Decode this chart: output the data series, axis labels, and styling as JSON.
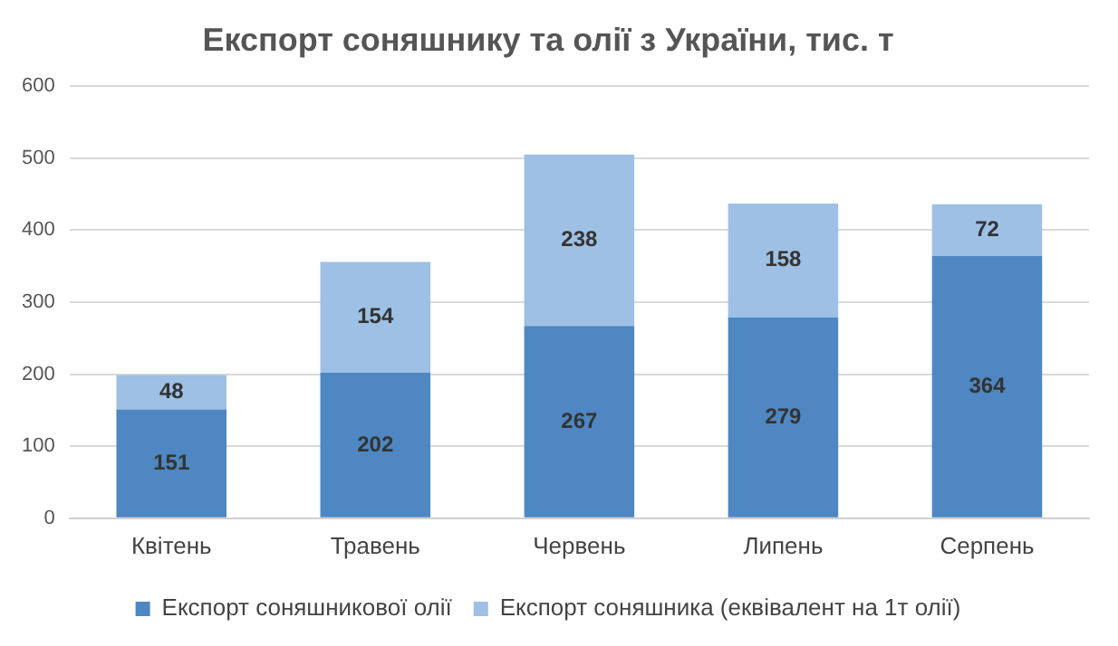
{
  "chart_data": {
    "type": "bar",
    "title": "Експорт соняшнику та олії з України, тис. т",
    "categories": [
      "Квітень",
      "Травень",
      "Червень",
      "Липень",
      "Серпень"
    ],
    "series": [
      {
        "name": "Експорт соняшникової олії",
        "color": "#4e87c1",
        "values": [
          151,
          202,
          267,
          279,
          364
        ]
      },
      {
        "name": "Експорт соняшника (еквівалент на 1т олії)",
        "color": "#9dc0e4",
        "values": [
          48,
          154,
          238,
          158,
          72
        ]
      }
    ],
    "stacked": true,
    "ylim": [
      0,
      600
    ],
    "yticks": [
      0,
      100,
      200,
      300,
      400,
      500,
      600
    ],
    "grid": "y",
    "legend": "bottom",
    "data_labels": true
  }
}
